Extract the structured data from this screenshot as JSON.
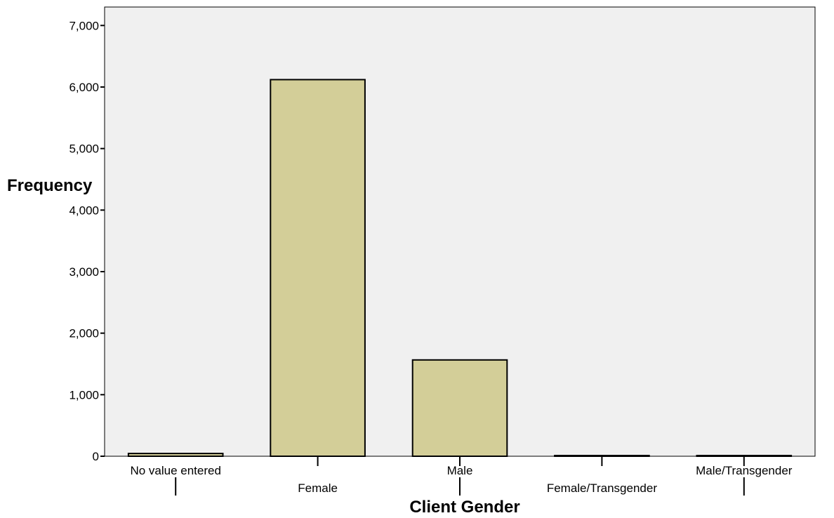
{
  "chart_data": {
    "type": "bar",
    "categories": [
      "No value entered",
      "Female",
      "Male",
      "Female/Transgender",
      "Male/Transgender"
    ],
    "values": [
      45,
      6120,
      1565,
      8,
      5
    ],
    "xlabel": "Client Gender",
    "ylabel": "Frequency",
    "ylim": [
      0,
      7300
    ],
    "yticks": [
      0,
      1000,
      2000,
      3000,
      4000,
      5000,
      6000,
      7000
    ],
    "ytick_labels": [
      "0",
      "1,000",
      "2,000",
      "3,000",
      "4,000",
      "5,000",
      "6,000",
      "7,000"
    ],
    "grid": false,
    "colors": {
      "plot_background": "#f0f0f0",
      "bar_fill": "#d3ce98",
      "bar_stroke": "#000000"
    }
  }
}
